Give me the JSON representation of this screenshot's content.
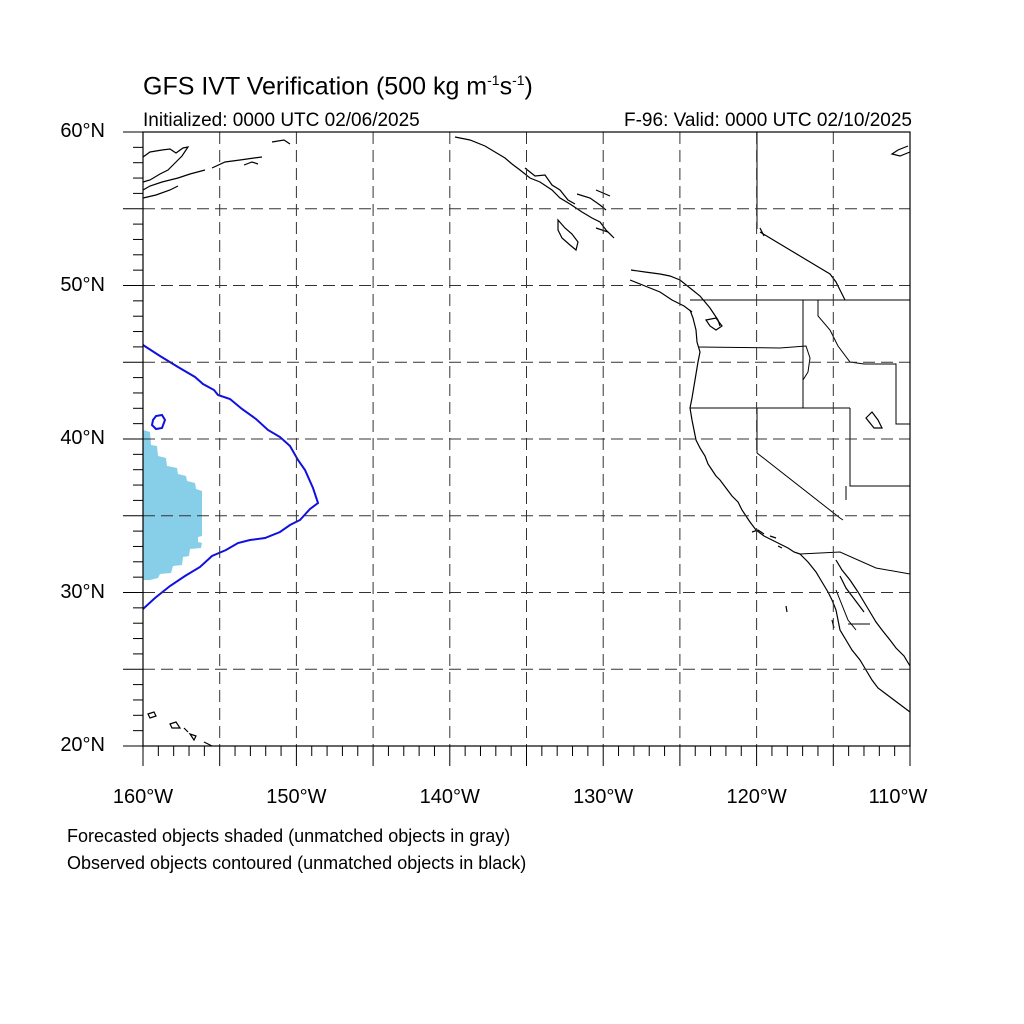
{
  "title": {
    "text_main": "GFS IVT Verification (500 kg m",
    "sup1": "-1",
    "text_mid": "s",
    "sup2": "-1",
    "text_end": ")"
  },
  "subtitle_left": "Initialized: 0000 UTC 02/06/2025",
  "subtitle_right": "F-96: Valid: 0000 UTC 02/10/2025",
  "lat_labels": [
    "60°N",
    "50°N",
    "40°N",
    "30°N",
    "20°N"
  ],
  "lon_labels": [
    "160°W",
    "150°W",
    "140°W",
    "130°W",
    "120°W",
    "110°W"
  ],
  "notes": [
    "Forecasted objects shaded (unmatched objects in gray)",
    "Observed objects contoured (unmatched objects in black)"
  ],
  "map": {
    "lon_range": [
      -160,
      -110
    ],
    "lat_range": [
      20,
      60
    ],
    "grid_lon_step": 5,
    "grid_lat_step": 5,
    "forecast_fill_color": "#87CEE8",
    "observed_contour_color": "#1010E0",
    "coastline_color": "#000000"
  }
}
